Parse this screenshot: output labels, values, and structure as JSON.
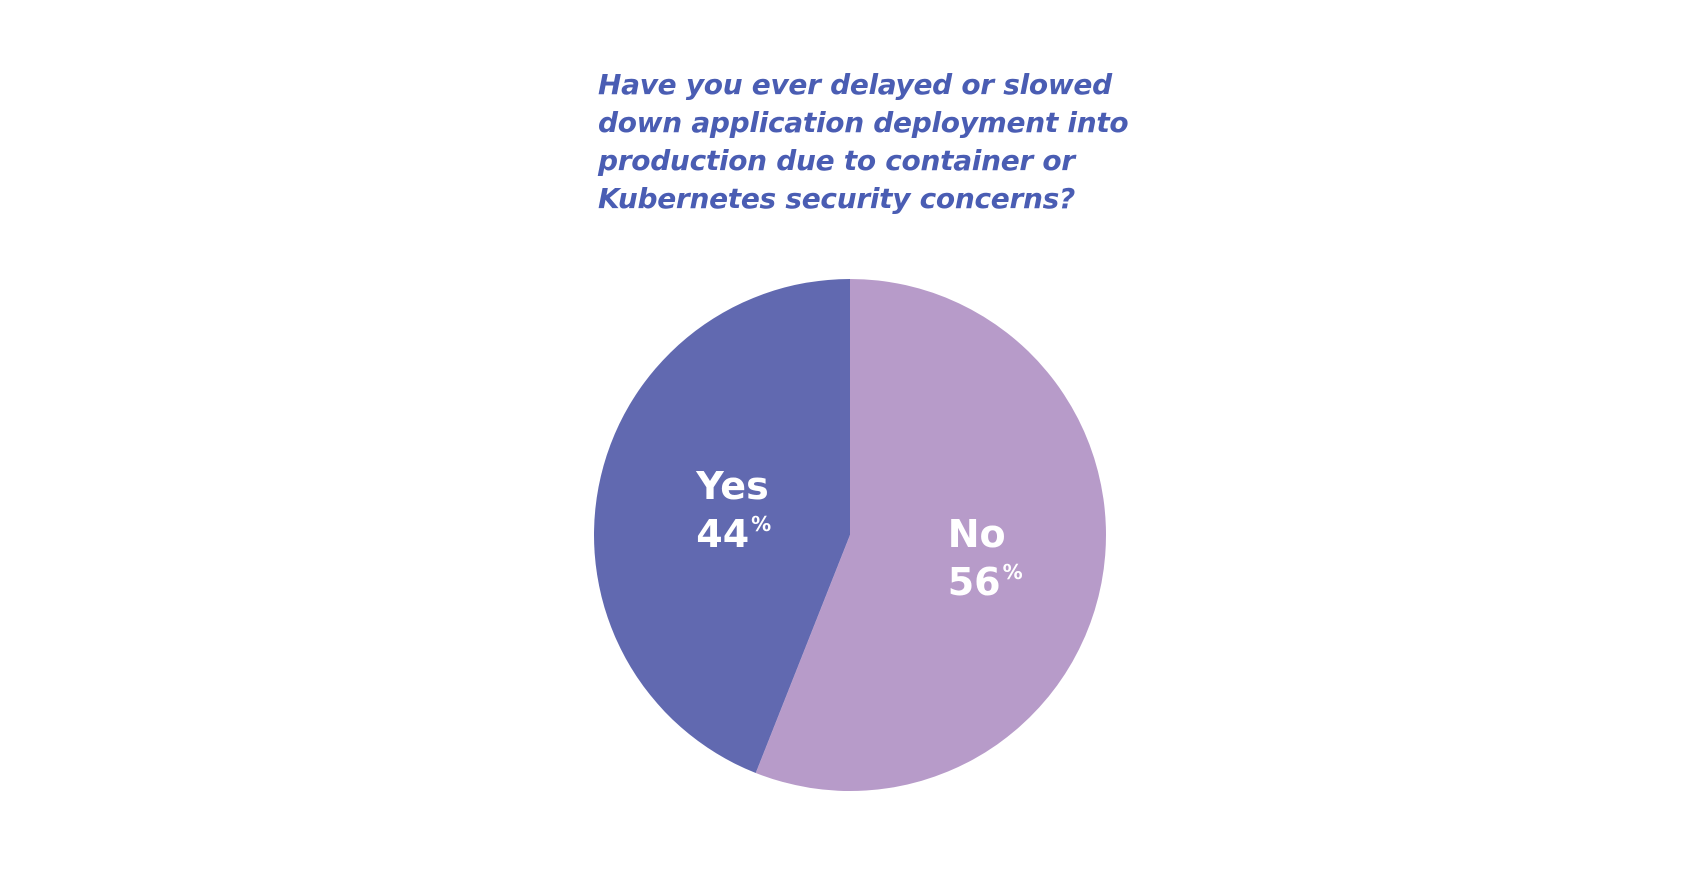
{
  "chart_data": {
    "type": "pie",
    "title_lines": [
      "Have you ever delayed or slowed",
      "down application deployment into",
      "production due to container or",
      "Kubernetes security concerns?"
    ],
    "slices": [
      {
        "label": "Yes",
        "value": 44,
        "unit": "%",
        "color": "#6169b0"
      },
      {
        "label": "No",
        "value": 56,
        "unit": "%",
        "color": "#b79bc9"
      }
    ],
    "start_angle_deg": 0,
    "direction": "counterclockwise-from-top",
    "legend": "none",
    "labels": "inside"
  }
}
